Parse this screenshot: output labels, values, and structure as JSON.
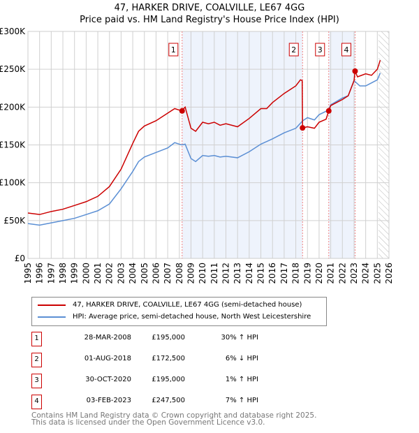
{
  "chart_data": {
    "type": "line",
    "title": "47, HARKER DRIVE, COALVILLE, LE67 4GG",
    "subtitle": "Price paid vs. HM Land Registry's House Price Index (HPI)",
    "xlim": [
      1995,
      2026
    ],
    "ylim": [
      0,
      300000
    ],
    "x_ticks": [
      "1995",
      "1996",
      "1997",
      "1998",
      "1999",
      "2000",
      "2001",
      "2002",
      "2003",
      "2004",
      "2005",
      "2006",
      "2007",
      "2008",
      "2009",
      "2010",
      "2011",
      "2012",
      "2013",
      "2014",
      "2015",
      "2016",
      "2017",
      "2018",
      "2019",
      "2020",
      "2021",
      "2022",
      "2023",
      "2024",
      "2025",
      "2026"
    ],
    "y_ticks": [
      {
        "v": 0,
        "l": "£0"
      },
      {
        "v": 50000,
        "l": "£50K"
      },
      {
        "v": 100000,
        "l": "£100K"
      },
      {
        "v": 150000,
        "l": "£150K"
      },
      {
        "v": 200000,
        "l": "£200K"
      },
      {
        "v": 250000,
        "l": "£250K"
      },
      {
        "v": 300000,
        "l": "£300K"
      }
    ],
    "grid": true,
    "series": [
      {
        "name": "47, HARKER DRIVE, COALVILLE, LE67 4GG (semi-detached house)",
        "color": "#cc0000",
        "x": [
          1995,
          1996,
          1997,
          1998,
          1999,
          2000,
          2001,
          2002,
          2003,
          2004,
          2004.5,
          2005,
          2006,
          2007,
          2007.6,
          2008.2,
          2008.5,
          2009,
          2009.4,
          2010,
          2010.5,
          2011,
          2011.5,
          2012,
          2013,
          2014,
          2015,
          2015.5,
          2016,
          2017,
          2018,
          2018.4,
          2018.55,
          2018.58,
          2019,
          2019.6,
          2020,
          2020.6,
          2020.83,
          2021,
          2022,
          2022.5,
          2023,
          2023.09,
          2023.3,
          2024,
          2024.5,
          2025,
          2025.25
        ],
        "y": [
          60000,
          58000,
          62000,
          65000,
          70000,
          75000,
          82000,
          95000,
          118000,
          152000,
          168000,
          175000,
          182000,
          192000,
          198000,
          195000,
          200000,
          172000,
          168000,
          180000,
          178000,
          180000,
          176000,
          178000,
          174000,
          185000,
          198000,
          198000,
          206000,
          218000,
          228000,
          236000,
          235000,
          172500,
          174000,
          172000,
          180000,
          184000,
          195000,
          202000,
          210000,
          215000,
          235000,
          247500,
          240000,
          244000,
          242000,
          250000,
          262000
        ]
      },
      {
        "name": "HPI: Average price, semi-detached house, North West Leicestershire",
        "color": "#5b8fd4",
        "x": [
          1995,
          1996,
          1997,
          1998,
          1999,
          2000,
          2001,
          2002,
          2003,
          2004,
          2004.5,
          2005,
          2006,
          2007,
          2007.6,
          2008.2,
          2008.5,
          2009,
          2009.4,
          2010,
          2010.5,
          2011,
          2011.5,
          2012,
          2013,
          2014,
          2015,
          2016,
          2017,
          2018,
          2018.6,
          2019,
          2019.6,
          2020,
          2020.8,
          2021,
          2022,
          2022.5,
          2023,
          2023.5,
          2024,
          2024.5,
          2025,
          2025.25
        ],
        "y": [
          46000,
          44000,
          47000,
          50000,
          53000,
          58000,
          63000,
          72000,
          92000,
          115000,
          128000,
          134000,
          140000,
          146000,
          153000,
          150000,
          151000,
          132000,
          128000,
          136000,
          135000,
          136000,
          134000,
          135000,
          133000,
          141000,
          151000,
          158000,
          166000,
          172000,
          182000,
          186000,
          183000,
          190000,
          196000,
          203000,
          212000,
          215000,
          235000,
          228000,
          228000,
          232000,
          236000,
          245000
        ]
      }
    ],
    "sales": [
      {
        "n": "1",
        "x": 2008.24,
        "date": "28-MAR-2008",
        "price": "£195,000",
        "value": 195000,
        "hpi": "30% ↑ HPI"
      },
      {
        "n": "2",
        "x": 2018.58,
        "date": "01-AUG-2018",
        "price": "£172,500",
        "value": 172500,
        "hpi": "6% ↓ HPI"
      },
      {
        "n": "3",
        "x": 2020.83,
        "date": "30-OCT-2020",
        "price": "£195,000",
        "value": 195000,
        "hpi": "1% ↑ HPI"
      },
      {
        "n": "4",
        "x": 2023.09,
        "date": "03-FEB-2023",
        "price": "£247,500",
        "value": 247500,
        "hpi": "7% ↑ HPI"
      }
    ],
    "shaded_ranges": [
      [
        2008.24,
        2018.58
      ],
      [
        2020.83,
        2023.09
      ]
    ],
    "hatched_from": 2025.1
  },
  "footer": [
    "Contains HM Land Registry data © Crown copyright and database right 2025.",
    "This data is licensed under the Open Government Licence v3.0."
  ]
}
